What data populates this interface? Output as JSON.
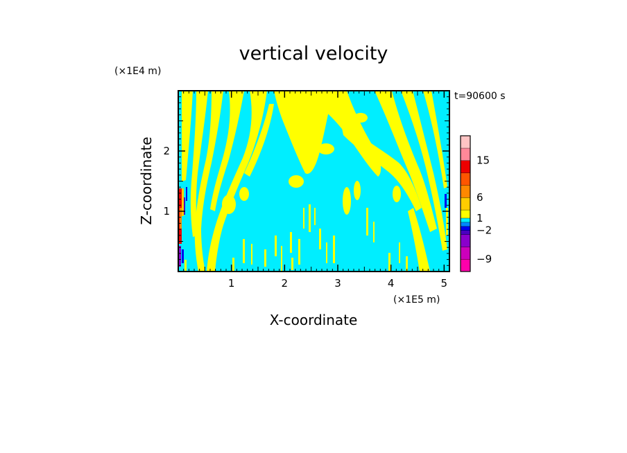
{
  "chart_data": {
    "type": "heatmap",
    "title": "vertical velocity",
    "time_label": "t=90600 s",
    "xlabel": "X-coordinate",
    "ylabel": "Z-coordinate",
    "x_multiplier": "(×1E5 m)",
    "y_multiplier": "(×1E4 m)",
    "xlim": [
      0,
      5.1
    ],
    "ylim": [
      0,
      3
    ],
    "x_ticks": [
      1,
      2,
      3,
      4,
      5
    ],
    "y_ticks": [
      1,
      2
    ],
    "field_colors": {
      "negative": "#00eeff",
      "positive": "#ffff00"
    },
    "colorbar": {
      "levels": [
        -12,
        -9,
        -6,
        -3,
        -2,
        -1,
        0,
        1,
        3,
        6,
        9,
        12,
        15,
        18,
        21
      ],
      "colors": [
        "#ff00aa",
        "#cc00bb",
        "#8a00cc",
        "#4b00c0",
        "#0000ee",
        "#0088ff",
        "#00eeff",
        "#ffff00",
        "#ffcc00",
        "#ff8800",
        "#ff5500",
        "#ee0000",
        "#ff8899",
        "#ffc4c4",
        "#ffeeee"
      ],
      "tick_labels": [
        "-9",
        "-2",
        "1",
        "6",
        "15"
      ],
      "tick_values": [
        -9,
        -2,
        1,
        6,
        15
      ]
    }
  }
}
